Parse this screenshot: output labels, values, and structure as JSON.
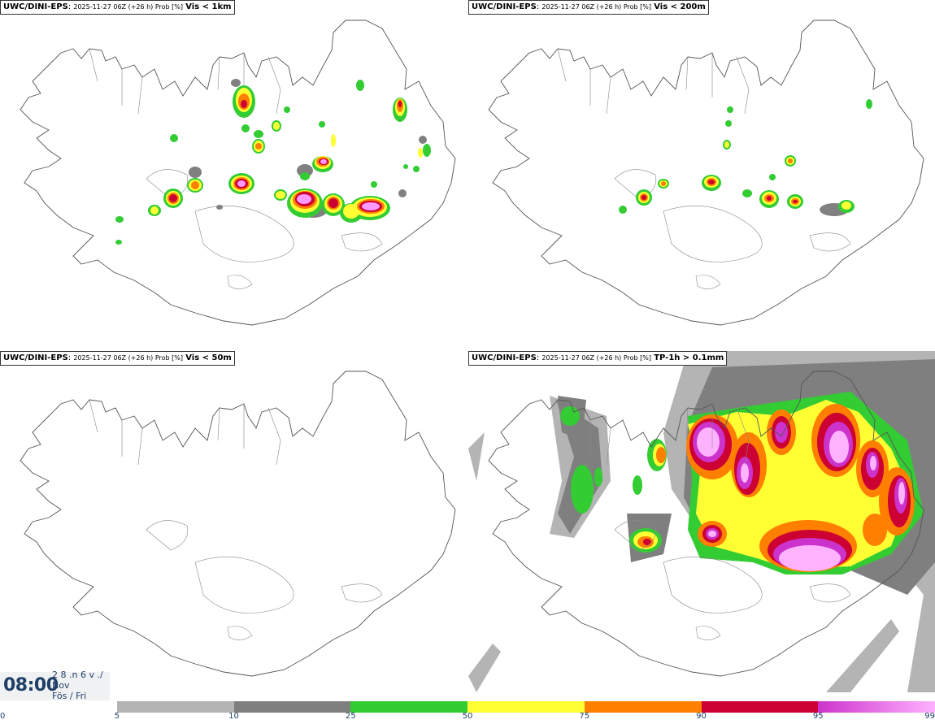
{
  "panels": [
    {
      "model": "UWC/DINI-EPS",
      "run": "2025-11-27 06Z (+26 h) Prob [%]",
      "variable": "Vis < 1km"
    },
    {
      "model": "UWC/DINI-EPS",
      "run": "2025-11-27 06Z (+26 h) Prob [%]",
      "variable": "Vis < 200m"
    },
    {
      "model": "UWC/DINI-EPS",
      "run": "2025-11-27 06Z (+26 h) Prob [%]",
      "variable": "Vis < 50m"
    },
    {
      "model": "UWC/DINI-EPS",
      "run": "2025-11-27 06Z (+26 h) Prob [%]",
      "variable": "TP-1h > 0.1mm"
    }
  ],
  "valid_time": {
    "time": "08:00",
    "date_line1": "2 8 .n 6 v ./",
    "month": "Nov",
    "weekday": "Fös / Fri"
  },
  "legend": {
    "ticks": [
      "0",
      "5",
      "10",
      "25",
      "50",
      "75",
      "90",
      "95",
      "99"
    ],
    "colors": [
      "#ffffff",
      "#b4b4b4",
      "#7f7f7f",
      "#33cc33",
      "#ffff33",
      "#ff7f00",
      "#cc0033",
      "#cc33cc",
      "#ffb3ff"
    ]
  }
}
